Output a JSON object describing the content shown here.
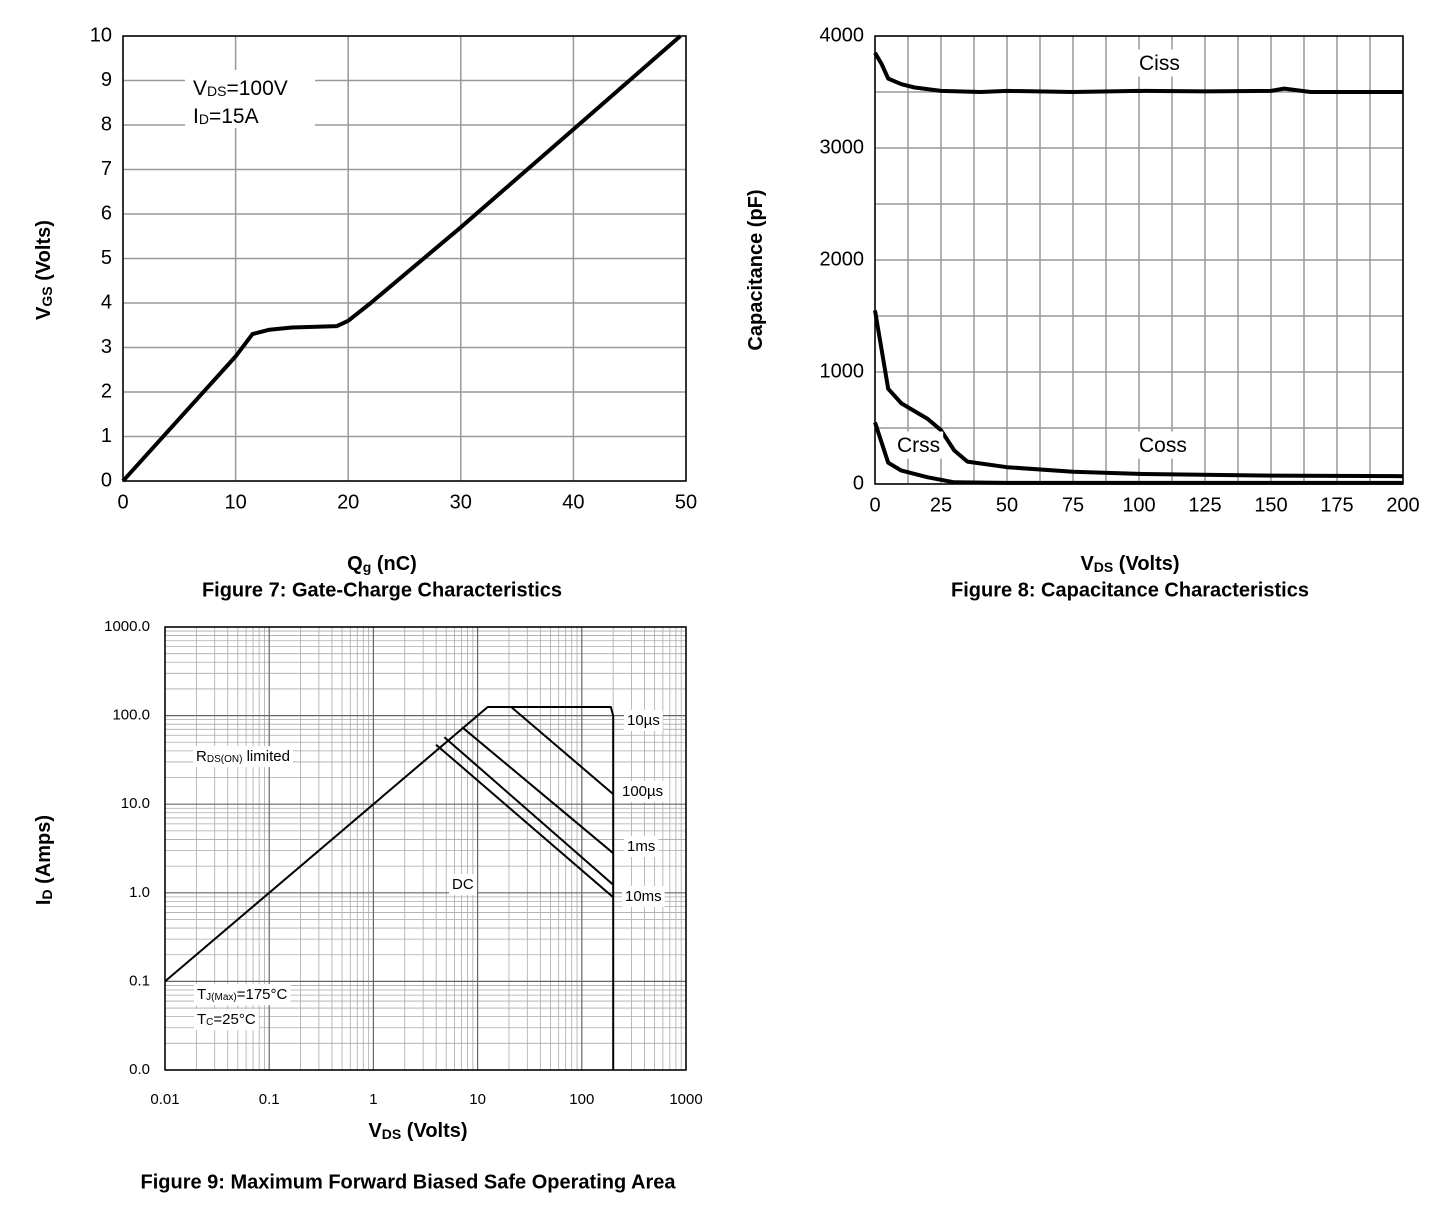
{
  "chart_data": [
    {
      "type": "line",
      "title": "Figure 7: Gate-Charge Characteristics",
      "x_label": [
        "Q",
        "g",
        " (nC)"
      ],
      "y_label": [
        "V",
        "GS",
        " (Volts)"
      ],
      "xlim": [
        0,
        50
      ],
      "ylim": [
        0,
        10
      ],
      "xticks": [
        0,
        10,
        20,
        30,
        40,
        50
      ],
      "yticks": [
        0,
        1,
        2,
        3,
        4,
        5,
        6,
        7,
        8,
        9,
        10
      ],
      "grid": true,
      "minor_grid": false,
      "log_scale": false,
      "annotations": [
        [
          "V",
          "DS",
          "=100V"
        ],
        [
          "I",
          "D",
          "=15A"
        ]
      ],
      "series": [
        {
          "color": "#000000",
          "x": [
            0,
            5,
            10,
            11.5,
            13,
            15,
            19,
            20,
            22,
            30,
            40,
            49.5
          ],
          "values": [
            0,
            1.4,
            2.8,
            3.3,
            3.4,
            3.45,
            3.48,
            3.6,
            4.0,
            5.7,
            7.9,
            10
          ]
        }
      ]
    },
    {
      "type": "line",
      "title": "Figure 8: Capacitance Characteristics",
      "x_label": [
        "V",
        "DS",
        " (Volts)"
      ],
      "y_label": [
        "Capacitance (pF)"
      ],
      "xlim": [
        0,
        200
      ],
      "ylim": [
        0,
        4000
      ],
      "xticks": [
        0,
        25,
        50,
        75,
        100,
        125,
        150,
        175,
        200
      ],
      "yticks": [
        0,
        1000,
        2000,
        3000,
        4000
      ],
      "grid": true,
      "minor_grid": true,
      "log_scale": false,
      "annotations": [
        [
          "Ciss"
        ],
        [
          "Crss"
        ],
        [
          "Coss"
        ]
      ],
      "series": [
        {
          "color": "#000000",
          "x": [
            0,
            2.5,
            5,
            10,
            15,
            25,
            40,
            50,
            75,
            100,
            125,
            150,
            155,
            165,
            200
          ],
          "values": [
            3850,
            3750,
            3620,
            3570,
            3540,
            3510,
            3500,
            3510,
            3500,
            3510,
            3505,
            3510,
            3530,
            3500,
            3500
          ]
        },
        {
          "color": "#000000",
          "x": [
            0,
            5,
            10,
            20,
            25,
            30,
            35,
            50,
            75,
            100,
            150,
            200
          ],
          "values": [
            1550,
            850,
            720,
            580,
            480,
            300,
            200,
            150,
            110,
            90,
            75,
            70
          ]
        },
        {
          "color": "#000000",
          "x": [
            0,
            5,
            10,
            20,
            30,
            50,
            200
          ],
          "values": [
            550,
            190,
            120,
            60,
            15,
            10,
            10
          ]
        }
      ]
    },
    {
      "type": "line",
      "title": "Figure 9: Maximum Forward Biased Safe Operating Area",
      "x_label": [
        "V",
        "DS",
        " (Volts)"
      ],
      "y_label": [
        "I",
        "D",
        " (Amps)"
      ],
      "xlim": [
        0.01,
        1000
      ],
      "ylim": [
        0.01,
        1000
      ],
      "xticks": [
        0.01,
        0.1,
        1,
        10,
        100,
        1000
      ],
      "yticks": [
        {
          "value": 0.01,
          "label": "0.0"
        },
        {
          "value": 0.1,
          "label": "0.1"
        },
        {
          "value": 1,
          "label": "1.0"
        },
        {
          "value": 10,
          "label": "10.0"
        },
        {
          "value": 100,
          "label": "100.0"
        },
        {
          "value": 1000,
          "label": "1000.0"
        }
      ],
      "grid": true,
      "minor_grid": true,
      "log_scale": true,
      "annotations": [
        [
          "10µs"
        ],
        [
          "100µs"
        ],
        [
          "1ms"
        ],
        [
          "10ms"
        ],
        [
          "DC"
        ],
        [
          "R",
          "DS(ON)",
          " limited"
        ],
        [
          "T",
          "J(Max)",
          "=175°C"
        ],
        [
          "T",
          "C",
          "=25°C"
        ]
      ],
      "series": [
        {
          "color": "#000000",
          "x": [
            0.01,
            12.5,
            190,
            200
          ],
          "values": [
            0.1,
            125,
            125,
            100
          ]
        },
        {
          "color": "#000000",
          "x": [
            21,
            200
          ],
          "values": [
            125,
            13
          ]
        },
        {
          "color": "#000000",
          "x": [
            7.1,
            200
          ],
          "values": [
            74,
            2.8
          ]
        },
        {
          "color": "#000000",
          "x": [
            4.8,
            200
          ],
          "values": [
            57,
            1.23
          ]
        },
        {
          "color": "#000000",
          "x": [
            4.0,
            200
          ],
          "values": [
            47,
            0.89
          ]
        },
        {
          "color": "#000000",
          "x": [
            200,
            200
          ],
          "values": [
            100,
            0.01
          ]
        }
      ]
    }
  ]
}
